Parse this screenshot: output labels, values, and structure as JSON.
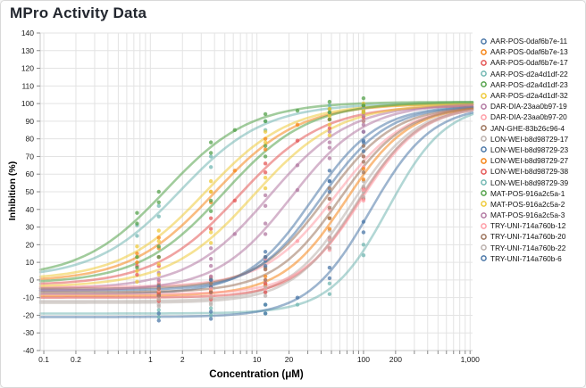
{
  "page": {
    "window_title": "MPro Activity Data"
  },
  "chart_data": {
    "type": "line",
    "subtype": "dose-response-sigmoid-with-scatter",
    "title": "MPro Activity Data",
    "xlabel": "Concentration (μM)",
    "ylabel": "Inhibition (%)",
    "x_scale": "log",
    "xlim": [
      0.0925,
      1055
    ],
    "ylim": [
      -40,
      140
    ],
    "grid": true,
    "legend_position": "right",
    "y_ticks": [
      140,
      130,
      120,
      110,
      100,
      90,
      80,
      70,
      60,
      50,
      40,
      30,
      20,
      10,
      0,
      -10,
      -20,
      -30,
      -40
    ],
    "x_tick_labels": [
      {
        "value": 0.1,
        "label": "0.1"
      },
      {
        "value": 0.2,
        "label": "0.2"
      },
      {
        "value": 1,
        "label": "1"
      },
      {
        "value": 2,
        "label": "2"
      },
      {
        "value": 10,
        "label": "10"
      },
      {
        "value": 20,
        "label": "20"
      },
      {
        "value": 100,
        "label": "100"
      },
      {
        "value": 200,
        "label": "200"
      },
      {
        "value": 1000,
        "label": "1,000"
      }
    ],
    "x_ticks_all": [
      0.1,
      0.2,
      0.3,
      0.4,
      0.5,
      0.6,
      0.7,
      0.8,
      0.9,
      1,
      2,
      3,
      4,
      5,
      6,
      7,
      8,
      9,
      10,
      20,
      30,
      40,
      50,
      60,
      70,
      80,
      90,
      100,
      200,
      300,
      400,
      500,
      600,
      700,
      800,
      900,
      1000
    ],
    "style": {
      "grid_color": "#e3e3e3",
      "domain_color": "#c9c9c9",
      "tick_color": "#8a8a8a",
      "tick_label_color": "#1a1a1a",
      "title_color": "#23272f",
      "curve_opacity": 0.55,
      "curve_width": 2.6,
      "point_opacity": 0.75,
      "point_radius": 2.2,
      "palette": [
        "#4c78a8",
        "#f58518",
        "#e45756",
        "#72b7b2",
        "#54a24b",
        "#eeca3b",
        "#b279a2",
        "#ff9da6",
        "#9d755d",
        "#bab0ac"
      ]
    },
    "series": [
      {
        "name": "AAR-POS-0daf6b7e-11",
        "color": "#4c78a8",
        "bottom": -8,
        "top": 99,
        "ec50": 33,
        "hill": 1.4,
        "points": [
          [
            1.2,
            -9
          ],
          [
            1.2,
            -5
          ],
          [
            3.7,
            -4
          ],
          [
            3.7,
            0
          ],
          [
            12,
            11
          ],
          [
            12,
            16
          ],
          [
            48,
            56
          ],
          [
            48,
            62
          ],
          [
            100,
            78
          ],
          [
            100,
            84
          ]
        ]
      },
      {
        "name": "AAR-POS-0daf6b7e-13",
        "color": "#f58518",
        "bottom": -1,
        "top": 100,
        "ec50": 4.0,
        "hill": 1.1,
        "points": [
          [
            0.75,
            10
          ],
          [
            0.75,
            15
          ],
          [
            1.2,
            18
          ],
          [
            1.2,
            24
          ],
          [
            3.7,
            44
          ],
          [
            3.7,
            50
          ],
          [
            6.2,
            62
          ],
          [
            12,
            74
          ],
          [
            12,
            80
          ],
          [
            24,
            88
          ],
          [
            48,
            91
          ],
          [
            48,
            95
          ],
          [
            100,
            95
          ],
          [
            100,
            98
          ]
        ]
      },
      {
        "name": "AAR-POS-0daf6b7e-17",
        "color": "#e45756",
        "bottom": -3,
        "top": 99,
        "ec50": 6.8,
        "hill": 1.1,
        "points": [
          [
            0.75,
            3
          ],
          [
            0.75,
            8
          ],
          [
            1.2,
            8
          ],
          [
            1.2,
            13
          ],
          [
            3.7,
            29
          ],
          [
            3.7,
            35
          ],
          [
            6.2,
            45
          ],
          [
            12,
            61
          ],
          [
            12,
            66
          ],
          [
            24,
            79
          ],
          [
            48,
            86
          ],
          [
            48,
            91
          ],
          [
            100,
            92
          ],
          [
            100,
            96
          ]
        ]
      },
      {
        "name": "AAR-POS-d2a4d1df-22",
        "color": "#72b7b2",
        "bottom": 1,
        "top": 100,
        "ec50": 1.9,
        "hill": 1.1,
        "points": [
          [
            0.75,
            25
          ],
          [
            0.75,
            31
          ],
          [
            1.2,
            36
          ],
          [
            1.2,
            42
          ],
          [
            3.7,
            64
          ],
          [
            3.7,
            70
          ],
          [
            12,
            85
          ],
          [
            12,
            90
          ],
          [
            48,
            95
          ],
          [
            48,
            99
          ],
          [
            100,
            97
          ],
          [
            100,
            100
          ]
        ]
      },
      {
        "name": "AAR-POS-d2a4d1df-23",
        "color": "#54a24b",
        "bottom": 1,
        "top": 101,
        "ec50": 1.4,
        "hill": 1.1,
        "points": [
          [
            0.75,
            32
          ],
          [
            0.75,
            38
          ],
          [
            1.2,
            44
          ],
          [
            1.2,
            50
          ],
          [
            3.7,
            72
          ],
          [
            3.7,
            78
          ],
          [
            6.2,
            85
          ],
          [
            12,
            90
          ],
          [
            12,
            94
          ],
          [
            24,
            96
          ],
          [
            48,
            97
          ],
          [
            48,
            101
          ],
          [
            100,
            99
          ],
          [
            100,
            103
          ]
        ]
      },
      {
        "name": "AAR-POS-d2a4d1df-32",
        "color": "#eeca3b",
        "bottom": 0,
        "top": 100,
        "ec50": 3.3,
        "hill": 1.1,
        "points": [
          [
            0.75,
            13
          ],
          [
            0.75,
            19
          ],
          [
            1.2,
            22
          ],
          [
            1.2,
            28
          ],
          [
            3.7,
            50
          ],
          [
            3.7,
            56
          ],
          [
            12,
            78
          ],
          [
            12,
            84
          ],
          [
            48,
            93
          ],
          [
            48,
            97
          ],
          [
            100,
            96
          ],
          [
            100,
            100
          ]
        ]
      },
      {
        "name": "DAR-DIA-23aa0b97-19",
        "color": "#b279a2",
        "bottom": -5,
        "top": 100,
        "ec50": 13,
        "hill": 1.15,
        "points": [
          [
            1.2,
            -2
          ],
          [
            1.2,
            4
          ],
          [
            3.7,
            12
          ],
          [
            3.7,
            18
          ],
          [
            6.2,
            26
          ],
          [
            12,
            42
          ],
          [
            12,
            48
          ],
          [
            24,
            65
          ],
          [
            48,
            78
          ],
          [
            48,
            84
          ],
          [
            100,
            88
          ],
          [
            100,
            93
          ]
        ]
      },
      {
        "name": "DAR-DIA-23aa0b97-20",
        "color": "#ff9da6",
        "bottom": -4,
        "top": 100,
        "ec50": 55,
        "hill": 1.3,
        "points": [
          [
            1.2,
            -6
          ],
          [
            1.2,
            -1
          ],
          [
            3.7,
            -4
          ],
          [
            3.7,
            2
          ],
          [
            12,
            6
          ],
          [
            12,
            12
          ],
          [
            24,
            22
          ],
          [
            48,
            40
          ],
          [
            48,
            46
          ],
          [
            100,
            64
          ],
          [
            100,
            70
          ]
        ]
      },
      {
        "name": "JAN-GHE-83b26c96-4",
        "color": "#9d755d",
        "bottom": -5,
        "top": 99,
        "ec50": 45,
        "hill": 1.35,
        "points": [
          [
            1.2,
            -7
          ],
          [
            1.2,
            -3
          ],
          [
            3.7,
            -4
          ],
          [
            3.7,
            1
          ],
          [
            12,
            7
          ],
          [
            12,
            13
          ],
          [
            48,
            46
          ],
          [
            48,
            52
          ],
          [
            100,
            70
          ],
          [
            100,
            76
          ]
        ]
      },
      {
        "name": "LON-WEI-b8d98729-17",
        "color": "#bab0ac",
        "bottom": -12,
        "top": 99,
        "ec50": 78,
        "hill": 1.45,
        "points": [
          [
            1.2,
            -14
          ],
          [
            1.2,
            -10
          ],
          [
            3.7,
            -13
          ],
          [
            3.7,
            -9
          ],
          [
            12,
            -7
          ],
          [
            12,
            -2
          ],
          [
            48,
            22
          ],
          [
            48,
            28
          ],
          [
            100,
            50
          ],
          [
            100,
            56
          ]
        ]
      },
      {
        "name": "LON-WEI-b8d98729-23",
        "color": "#4c78a8",
        "bottom": -6,
        "top": 99,
        "ec50": 40,
        "hill": 1.4,
        "points": [
          [
            1.2,
            -8
          ],
          [
            1.2,
            -4
          ],
          [
            3.7,
            -4
          ],
          [
            3.7,
            0
          ],
          [
            12,
            8
          ],
          [
            12,
            13
          ],
          [
            48,
            50
          ],
          [
            48,
            56
          ],
          [
            100,
            73
          ],
          [
            100,
            79
          ]
        ]
      },
      {
        "name": "LON-WEI-b8d98729-27",
        "color": "#f58518",
        "bottom": -9,
        "top": 99,
        "ec50": 68,
        "hill": 1.45,
        "points": [
          [
            1.2,
            -11
          ],
          [
            1.2,
            -7
          ],
          [
            3.7,
            -10
          ],
          [
            3.7,
            -6
          ],
          [
            12,
            -3
          ],
          [
            12,
            2
          ],
          [
            48,
            29
          ],
          [
            48,
            35
          ],
          [
            100,
            57
          ],
          [
            100,
            63
          ]
        ]
      },
      {
        "name": "LON-WEI-b8d98729-38",
        "color": "#e45756",
        "bottom": -10,
        "top": 99,
        "ec50": 90,
        "hill": 1.5,
        "points": [
          [
            1.2,
            -12
          ],
          [
            1.2,
            -8
          ],
          [
            3.7,
            -11
          ],
          [
            3.7,
            -7
          ],
          [
            12,
            -7
          ],
          [
            12,
            -2
          ],
          [
            48,
            18
          ],
          [
            48,
            24
          ],
          [
            100,
            46
          ],
          [
            100,
            52
          ]
        ]
      },
      {
        "name": "LON-WEI-b8d98729-39",
        "color": "#72b7b2",
        "bottom": -19,
        "top": 100,
        "ec50": 170,
        "hill": 1.6,
        "points": [
          [
            1.2,
            -21
          ],
          [
            1.2,
            -17
          ],
          [
            3.7,
            -20
          ],
          [
            3.7,
            -16
          ],
          [
            12,
            -19
          ],
          [
            12,
            -14
          ],
          [
            24,
            -14
          ],
          [
            48,
            -8
          ],
          [
            48,
            -2
          ],
          [
            100,
            14
          ],
          [
            100,
            20
          ]
        ]
      },
      {
        "name": "MAT-POS-916a2c5a-1",
        "color": "#54a24b",
        "bottom": -2,
        "top": 101,
        "ec50": 4.9,
        "hill": 1.1,
        "points": [
          [
            0.75,
            7
          ],
          [
            0.75,
            13
          ],
          [
            1.2,
            13
          ],
          [
            1.2,
            19
          ],
          [
            3.7,
            39
          ],
          [
            3.7,
            45
          ],
          [
            12,
            70
          ],
          [
            12,
            76
          ],
          [
            48,
            91
          ],
          [
            48,
            95
          ],
          [
            100,
            95
          ],
          [
            100,
            99
          ]
        ]
      },
      {
        "name": "MAT-POS-916a2c5a-2",
        "color": "#eeca3b",
        "bottom": -4,
        "top": 100,
        "ec50": 9.3,
        "hill": 1.1,
        "points": [
          [
            0.75,
            -1
          ],
          [
            0.75,
            5
          ],
          [
            1.2,
            3
          ],
          [
            1.2,
            9
          ],
          [
            3.7,
            21
          ],
          [
            3.7,
            27
          ],
          [
            12,
            52
          ],
          [
            12,
            58
          ],
          [
            48,
            82
          ],
          [
            48,
            88
          ],
          [
            100,
            90
          ],
          [
            100,
            95
          ]
        ]
      },
      {
        "name": "MAT-POS-916a2c5a-3",
        "color": "#b279a2",
        "bottom": -6,
        "top": 100,
        "ec50": 21,
        "hill": 1.25,
        "points": [
          [
            1.2,
            -5
          ],
          [
            1.2,
            0
          ],
          [
            3.7,
            2
          ],
          [
            3.7,
            8
          ],
          [
            12,
            26
          ],
          [
            12,
            32
          ],
          [
            24,
            51
          ],
          [
            48,
            69
          ],
          [
            48,
            75
          ],
          [
            100,
            84
          ],
          [
            100,
            90
          ]
        ]
      },
      {
        "name": "TRY-UNI-714a760b-12",
        "color": "#ff9da6",
        "bottom": -8,
        "top": 99,
        "ec50": 95,
        "hill": 1.5,
        "points": [
          [
            1.2,
            -10
          ],
          [
            1.2,
            -6
          ],
          [
            3.7,
            -9
          ],
          [
            3.7,
            -5
          ],
          [
            12,
            -5
          ],
          [
            12,
            0
          ],
          [
            48,
            17
          ],
          [
            48,
            23
          ],
          [
            100,
            45
          ],
          [
            100,
            51
          ]
        ]
      },
      {
        "name": "TRY-UNI-714a760b-20",
        "color": "#9d755d",
        "bottom": -7,
        "top": 99,
        "ec50": 60,
        "hill": 1.4,
        "points": [
          [
            1.2,
            -9
          ],
          [
            1.2,
            -5
          ],
          [
            3.7,
            -7
          ],
          [
            3.7,
            -2
          ],
          [
            12,
            0
          ],
          [
            12,
            6
          ],
          [
            48,
            35
          ],
          [
            48,
            41
          ],
          [
            100,
            61
          ],
          [
            100,
            67
          ]
        ]
      },
      {
        "name": "TRY-UNI-714a760b-22",
        "color": "#bab0ac",
        "bottom": -13,
        "top": 99,
        "ec50": 85,
        "hill": 1.45,
        "points": [
          [
            1.2,
            -15
          ],
          [
            1.2,
            -11
          ],
          [
            3.7,
            -14
          ],
          [
            3.7,
            -10
          ],
          [
            12,
            -9
          ],
          [
            12,
            -4
          ],
          [
            48,
            18
          ],
          [
            48,
            24
          ],
          [
            100,
            47
          ],
          [
            100,
            53
          ]
        ]
      },
      {
        "name": "TRY-UNI-714a760b-6",
        "color": "#4c78a8",
        "bottom": -21,
        "top": 99,
        "ec50": 115,
        "hill": 1.5,
        "points": [
          [
            1.2,
            -23
          ],
          [
            1.2,
            -19
          ],
          [
            3.7,
            -22
          ],
          [
            3.7,
            -18
          ],
          [
            12,
            -19
          ],
          [
            12,
            -14
          ],
          [
            24,
            -10
          ],
          [
            48,
            1
          ],
          [
            48,
            7
          ],
          [
            100,
            27
          ],
          [
            100,
            33
          ]
        ]
      }
    ]
  }
}
